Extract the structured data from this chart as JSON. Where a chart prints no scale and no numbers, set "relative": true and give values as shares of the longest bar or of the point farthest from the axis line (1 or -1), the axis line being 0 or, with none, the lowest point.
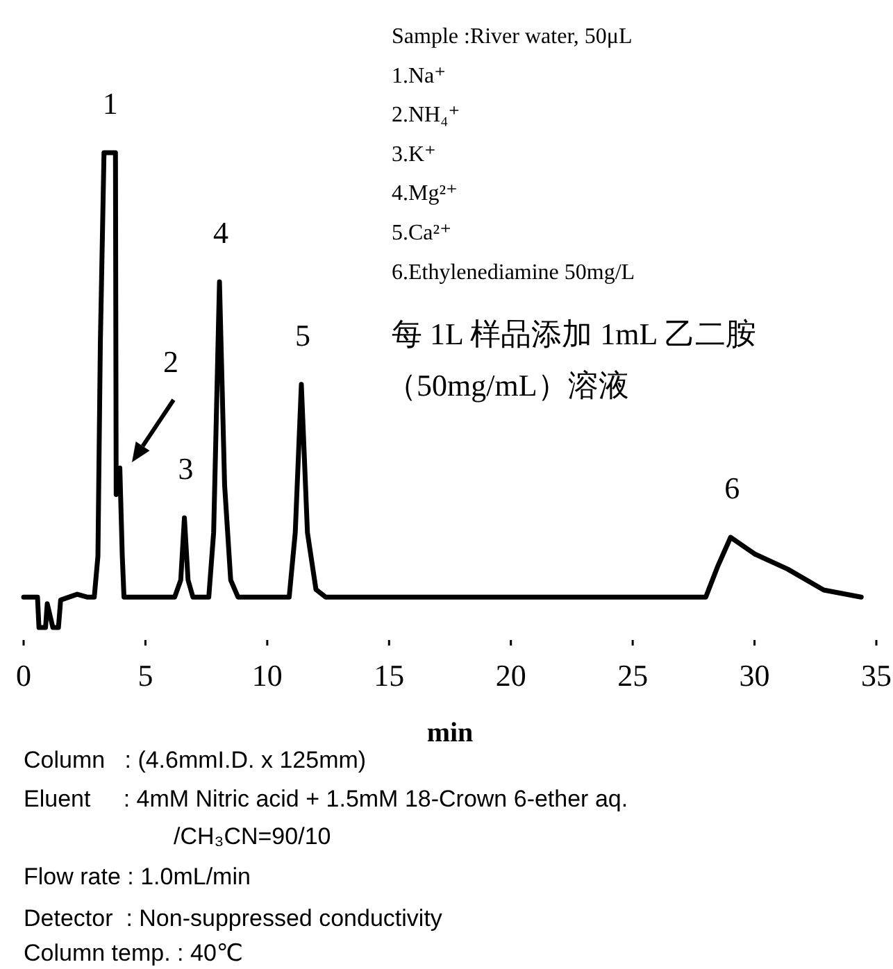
{
  "chart_data": {
    "type": "line",
    "relative": true,
    "xlabel": "min",
    "xlim": [
      0,
      35
    ],
    "xticks": [
      0,
      5,
      10,
      15,
      20,
      25,
      30,
      35
    ],
    "x": [
      0,
      0.57,
      0.63,
      0.9,
      0.97,
      1.2,
      1.43,
      1.52,
      2.2,
      2.6,
      2.9,
      3.05,
      3.15,
      3.3,
      3.77,
      3.8,
      3.95,
      4.05,
      4.12,
      6.2,
      6.45,
      6.6,
      6.75,
      6.95,
      7.6,
      7.8,
      8.04,
      8.25,
      8.5,
      8.8,
      10.9,
      11.15,
      11.4,
      11.65,
      12.0,
      12.4,
      28.0,
      28.5,
      29.02,
      30.0,
      31.36,
      32.84,
      34.38
    ],
    "series": [
      {
        "color": "#000000",
        "values": [
          0.064,
          0.064,
          0,
          0,
          0.05,
          0,
          0,
          0.058,
          0.07,
          0.064,
          0.064,
          0.15,
          0.6,
          1,
          1,
          0.28,
          0.336,
          0.15,
          0.064,
          0.064,
          0.1,
          0.231,
          0.1,
          0.064,
          0.064,
          0.2,
          0.728,
          0.3,
          0.1,
          0.064,
          0.064,
          0.2,
          0.512,
          0.2,
          0.08,
          0.064,
          0.064,
          0.13,
          0.19,
          0.155,
          0.123,
          0.079,
          0.064
        ]
      }
    ],
    "annotations": [
      {
        "text": "1",
        "x": 3.5,
        "y": 1
      },
      "2",
      {
        "text": "3",
        "x": 6.6,
        "y": 0.231
      },
      {
        "text": "4",
        "x": 8.04,
        "y": 0.728
      },
      {
        "text": "5",
        "x": 11.4,
        "y": 0.512
      },
      {
        "text": "6",
        "x": 29.02,
        "y": 0.19
      },
      "Sample :River water, 50μL",
      "1.Na⁺",
      "2.NH₄⁺",
      "3.K⁺",
      "4.Mg²⁺",
      "5.Ca²⁺",
      "6.Ethylenediamine 50mg/L",
      "每 1L 样品添加 1mL 乙二胺",
      "（50mg/mL）溶液",
      "Column   : (4.6mmI.D. x 125mm)",
      "Eluent     : 4mM Nitric acid + 1.5mM 18-Crown 6-ether aq.",
      "/CH₃CN=90/10",
      "Flow rate : 1.0mL/min",
      "Detector  : Non-suppressed conductivity",
      "Column temp. : 40℃"
    ]
  }
}
